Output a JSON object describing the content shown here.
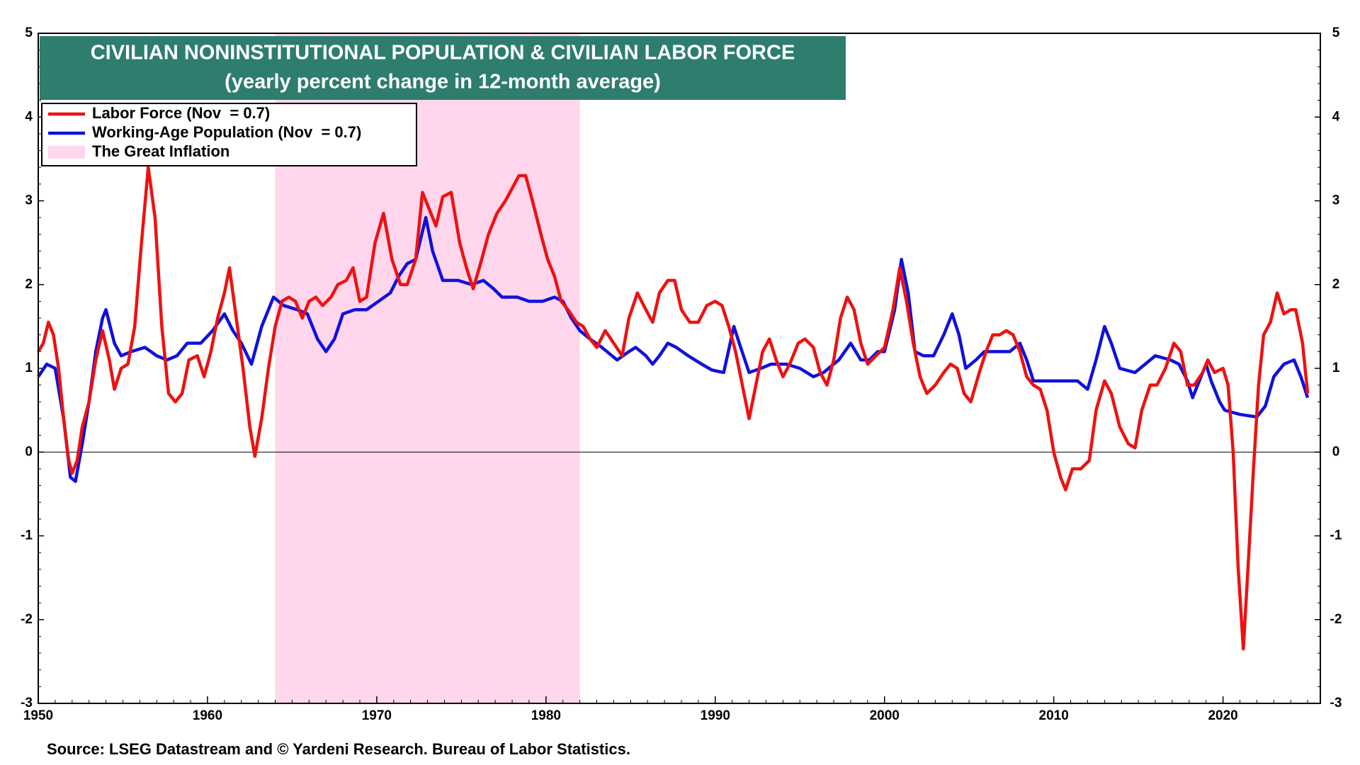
{
  "chart_data": {
    "type": "line",
    "title": "CIVILIAN NONINSTITUTIONAL POPULATION & CIVILIAN LABOR FORCE",
    "subtitle": "(yearly percent change in 12-month average)",
    "source": "Source: LSEG Datastream and © Yardeni Research. Bureau of Labor Statistics.",
    "xlim": [
      1950,
      2025.75
    ],
    "xticks": [
      1950,
      1960,
      1970,
      1980,
      1990,
      2000,
      2010,
      2020
    ],
    "ylim": [
      -3,
      5
    ],
    "yticks": [
      -3,
      -2,
      -1,
      0,
      1,
      2,
      3,
      4,
      5
    ],
    "shade": {
      "name": "The Great Inflation",
      "x": [
        1964,
        1982
      ],
      "color": "#ffd6ec"
    },
    "series": [
      {
        "name": "Labor Force (Nov  = 0.7)",
        "color": "#ee1111",
        "x": [
          1950,
          1950.3,
          1950.6,
          1950.9,
          1951.2,
          1951.5,
          1951.8,
          1952.0,
          1952.3,
          1952.6,
          1953,
          1953.4,
          1953.8,
          1954.2,
          1954.5,
          1954.9,
          1955.3,
          1955.7,
          1956.1,
          1956.5,
          1956.9,
          1957.3,
          1957.7,
          1958.1,
          1958.5,
          1958.9,
          1959.4,
          1959.8,
          1960.2,
          1960.6,
          1961.0,
          1961.3,
          1961.7,
          1962.1,
          1962.5,
          1962.8,
          1963.2,
          1963.6,
          1964.0,
          1964.4,
          1964.8,
          1965.2,
          1965.6,
          1966.0,
          1966.4,
          1966.8,
          1967.3,
          1967.7,
          1968.2,
          1968.6,
          1969.0,
          1969.4,
          1969.9,
          1970.4,
          1970.9,
          1971.4,
          1971.8,
          1972.3,
          1972.7,
          1973.1,
          1973.5,
          1973.9,
          1974.4,
          1974.9,
          1975.3,
          1975.7,
          1976.2,
          1976.6,
          1977.1,
          1977.6,
          1978.0,
          1978.4,
          1978.8,
          1979.2,
          1979.7,
          1980.1,
          1980.5,
          1980.9,
          1981.3,
          1981.8,
          1982.2,
          1982.6,
          1983.0,
          1983.5,
          1984.0,
          1984.5,
          1984.9,
          1985.4,
          1985.9,
          1986.3,
          1986.7,
          1987.2,
          1987.6,
          1988.0,
          1988.5,
          1989.0,
          1989.5,
          1990.0,
          1990.4,
          1990.8,
          1991.2,
          1991.6,
          1992.0,
          1992.4,
          1992.8,
          1993.2,
          1993.6,
          1994.0,
          1994.4,
          1994.9,
          1995.3,
          1995.8,
          1996.2,
          1996.6,
          1997.0,
          1997.4,
          1997.8,
          1998.2,
          1998.6,
          1999.0,
          1999.5,
          2000.0,
          2000.5,
          2000.9,
          2001.3,
          2001.7,
          2002.1,
          2002.5,
          2003.0,
          2003.5,
          2003.9,
          2004.3,
          2004.7,
          2005.1,
          2005.6,
          2006.0,
          2006.4,
          2006.8,
          2007.2,
          2007.6,
          2008.0,
          2008.4,
          2008.8,
          2009.2,
          2009.6,
          2010.0,
          2010.4,
          2010.7,
          2011.1,
          2011.6,
          2012.1,
          2012.5,
          2013.0,
          2013.4,
          2013.9,
          2014.4,
          2014.8,
          2015.2,
          2015.7,
          2016.1,
          2016.6,
          2017.1,
          2017.5,
          2017.9,
          2018.3,
          2018.8,
          2019.1,
          2019.5,
          2020.0,
          2020.3,
          2020.6,
          2020.9,
          2021.2,
          2021.5,
          2021.8,
          2022.1,
          2022.4,
          2022.8,
          2023.2,
          2023.6,
          2024.0,
          2024.3,
          2024.7,
          2025.0
        ],
        "values": [
          1.2,
          1.3,
          1.55,
          1.4,
          1.0,
          0.4,
          -0.1,
          -0.25,
          -0.1,
          0.3,
          0.6,
          1.1,
          1.45,
          1.1,
          0.75,
          1.0,
          1.05,
          1.5,
          2.5,
          3.4,
          2.8,
          1.5,
          0.7,
          0.6,
          0.7,
          1.1,
          1.15,
          0.9,
          1.2,
          1.6,
          1.9,
          2.2,
          1.6,
          1.0,
          0.3,
          -0.05,
          0.4,
          1.0,
          1.5,
          1.8,
          1.85,
          1.8,
          1.6,
          1.8,
          1.85,
          1.75,
          1.85,
          2.0,
          2.05,
          2.2,
          1.8,
          1.85,
          2.5,
          2.85,
          2.3,
          2.0,
          2.0,
          2.3,
          3.1,
          2.9,
          2.7,
          3.05,
          3.1,
          2.5,
          2.2,
          1.95,
          2.3,
          2.6,
          2.85,
          3.0,
          3.15,
          3.3,
          3.3,
          3.0,
          2.6,
          2.3,
          2.1,
          1.8,
          1.7,
          1.55,
          1.5,
          1.35,
          1.25,
          1.45,
          1.3,
          1.15,
          1.6,
          1.9,
          1.7,
          1.55,
          1.9,
          2.05,
          2.05,
          1.7,
          1.55,
          1.55,
          1.75,
          1.8,
          1.75,
          1.5,
          1.2,
          0.8,
          0.4,
          0.8,
          1.2,
          1.35,
          1.1,
          0.9,
          1.05,
          1.3,
          1.35,
          1.25,
          0.95,
          0.8,
          1.1,
          1.6,
          1.85,
          1.7,
          1.3,
          1.05,
          1.15,
          1.25,
          1.7,
          2.2,
          1.8,
          1.3,
          0.9,
          0.7,
          0.8,
          0.95,
          1.05,
          1.0,
          0.7,
          0.6,
          0.95,
          1.2,
          1.4,
          1.4,
          1.45,
          1.4,
          1.2,
          0.9,
          0.8,
          0.75,
          0.5,
          0.0,
          -0.3,
          -0.45,
          -0.2,
          -0.2,
          -0.1,
          0.5,
          0.85,
          0.7,
          0.3,
          0.1,
          0.05,
          0.5,
          0.8,
          0.8,
          1.0,
          1.3,
          1.2,
          0.8,
          0.8,
          0.95,
          1.1,
          0.95,
          1.0,
          0.8,
          0.0,
          -1.4,
          -2.35,
          -1.3,
          -0.2,
          0.8,
          1.4,
          1.55,
          1.9,
          1.65,
          1.7,
          1.7,
          1.3,
          0.7
        ]
      },
      {
        "name": "Working-Age Population (Nov  = 0.7)",
        "color": "#1010dd",
        "x": [
          1950,
          1950.5,
          1951.0,
          1951.5,
          1951.9,
          1952.2,
          1952.6,
          1953.0,
          1953.4,
          1953.8,
          1954.0,
          1954.5,
          1954.9,
          1955.5,
          1956.3,
          1957.0,
          1957.6,
          1958.2,
          1958.8,
          1959.6,
          1960.3,
          1961.0,
          1961.5,
          1962.0,
          1962.6,
          1963.2,
          1963.9,
          1964.5,
          1965.3,
          1965.9,
          1966.5,
          1967.0,
          1967.5,
          1968.0,
          1968.7,
          1969.4,
          1970.1,
          1970.8,
          1971.3,
          1971.8,
          1972.3,
          1972.9,
          1973.3,
          1973.9,
          1974.8,
          1975.6,
          1976.3,
          1976.9,
          1977.4,
          1978.3,
          1979.0,
          1979.8,
          1980.5,
          1981.0,
          1981.5,
          1982.0,
          1982.6,
          1983.3,
          1984.2,
          1984.9,
          1985.3,
          1985.9,
          1986.3,
          1986.7,
          1987.2,
          1987.7,
          1988.4,
          1989.2,
          1989.8,
          1990.5,
          1991.1,
          1991.5,
          1992.0,
          1992.7,
          1993.3,
          1994.2,
          1995.0,
          1995.8,
          1996.4,
          1997.3,
          1998.0,
          1998.6,
          1999.1,
          1999.6,
          2000.0,
          2000.6,
          2001.0,
          2001.4,
          2001.8,
          2002.3,
          2002.9,
          2003.5,
          2004.0,
          2004.4,
          2004.8,
          2005.4,
          2005.9,
          2006.6,
          2007.4,
          2008.0,
          2008.4,
          2008.8,
          2009.6,
          2010.5,
          2011.4,
          2012.0,
          2012.5,
          2013.0,
          2013.4,
          2013.9,
          2014.8,
          2015.4,
          2016.0,
          2016.9,
          2017.4,
          2017.9,
          2018.2,
          2018.6,
          2019.0,
          2019.3,
          2019.8,
          2020.1,
          2021.0,
          2022.0,
          2022.5,
          2023.0,
          2023.6,
          2024.2,
          2024.6,
          2025.0
        ],
        "values": [
          0.9,
          1.05,
          1.0,
          0.4,
          -0.3,
          -0.35,
          0.1,
          0.6,
          1.2,
          1.6,
          1.7,
          1.3,
          1.15,
          1.2,
          1.25,
          1.15,
          1.1,
          1.15,
          1.3,
          1.3,
          1.45,
          1.65,
          1.45,
          1.3,
          1.05,
          1.5,
          1.85,
          1.75,
          1.7,
          1.65,
          1.35,
          1.2,
          1.35,
          1.65,
          1.7,
          1.7,
          1.8,
          1.9,
          2.1,
          2.25,
          2.3,
          2.8,
          2.4,
          2.05,
          2.05,
          2.0,
          2.05,
          1.95,
          1.85,
          1.85,
          1.8,
          1.8,
          1.85,
          1.8,
          1.6,
          1.45,
          1.35,
          1.25,
          1.1,
          1.2,
          1.25,
          1.15,
          1.05,
          1.15,
          1.3,
          1.25,
          1.15,
          1.05,
          0.98,
          0.95,
          1.5,
          1.25,
          0.95,
          1.0,
          1.05,
          1.05,
          1.0,
          0.9,
          0.95,
          1.1,
          1.3,
          1.1,
          1.1,
          1.2,
          1.2,
          1.7,
          2.3,
          1.9,
          1.2,
          1.15,
          1.15,
          1.4,
          1.65,
          1.4,
          1.0,
          1.1,
          1.2,
          1.2,
          1.2,
          1.3,
          1.1,
          0.85,
          0.85,
          0.85,
          0.85,
          0.75,
          1.1,
          1.5,
          1.3,
          1.0,
          0.95,
          1.05,
          1.15,
          1.1,
          1.05,
          0.85,
          0.65,
          0.85,
          1.05,
          0.85,
          0.6,
          0.5,
          0.45,
          0.42,
          0.55,
          0.9,
          1.05,
          1.1,
          0.9,
          0.65
        ]
      }
    ]
  }
}
